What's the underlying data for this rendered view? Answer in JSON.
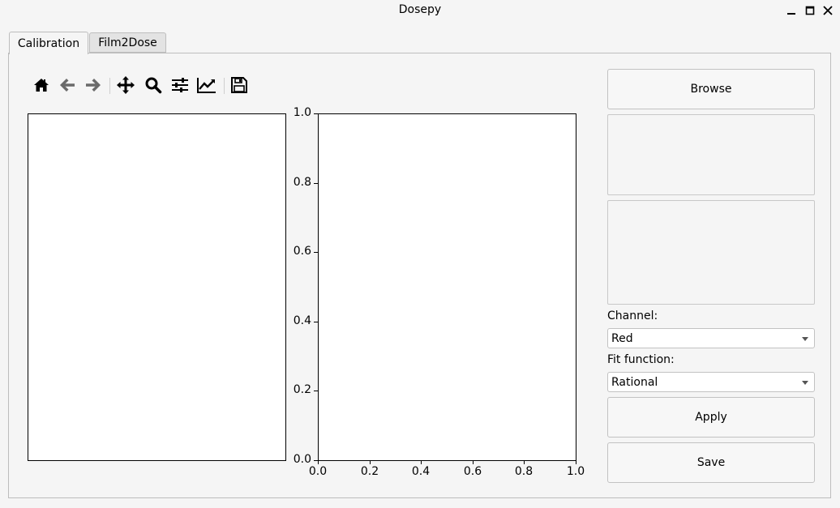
{
  "window": {
    "title": "Dosepy"
  },
  "tabs": [
    {
      "label": "Calibration",
      "active": true
    },
    {
      "label": "Film2Dose",
      "active": false
    }
  ],
  "toolbar": {
    "icons": [
      "home-icon",
      "back-icon",
      "forward-icon",
      "pan-icon",
      "zoom-icon",
      "configure-subplots-icon",
      "edit-axes-icon",
      "save-figure-icon"
    ]
  },
  "plot": {
    "y_ticks": [
      "0.0",
      "0.2",
      "0.4",
      "0.6",
      "0.8",
      "1.0"
    ],
    "x_ticks": [
      "0.0",
      "0.2",
      "0.4",
      "0.6",
      "0.8",
      "1.0"
    ]
  },
  "side_panel": {
    "browse_label": "Browse",
    "channel_label": "Channel:",
    "channel_value": "Red",
    "fit_label": "Fit function:",
    "fit_value": "Rational",
    "apply_label": "Apply",
    "save_label": "Save"
  },
  "colors": {
    "background": "#f5f5f5",
    "plot_background": "#ffffff",
    "icon": "#000000",
    "icon_disabled": "#6a6a6a"
  }
}
